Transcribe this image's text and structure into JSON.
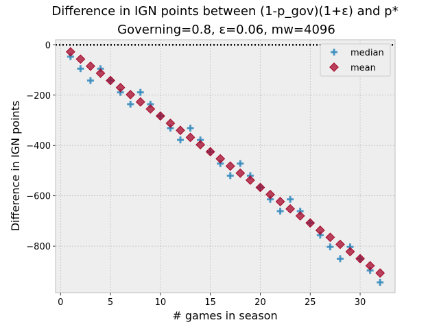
{
  "chart_data": {
    "type": "scatter",
    "title_line1": "Difference in IGN points between (1-p_gov)(1+ε) and p*",
    "title_line2": "Governing=0.8, ε=0.06, mw=4096",
    "xlabel": "# games in season",
    "ylabel": "Difference in IGN points",
    "xlim": [
      -0.5,
      33.5
    ],
    "ylim": [
      -985,
      20
    ],
    "xticks": [
      0,
      5,
      10,
      15,
      20,
      25,
      30
    ],
    "yticks": [
      0,
      -200,
      -400,
      -600,
      -800
    ],
    "grid": true,
    "legend_position": "top-right",
    "reference_line": {
      "y": 0,
      "style": "dotted"
    },
    "series": [
      {
        "name": "median",
        "marker": "plus",
        "color": "#348ABD",
        "x": [
          1,
          2,
          3,
          4,
          5,
          6,
          7,
          8,
          9,
          10,
          11,
          12,
          13,
          14,
          15,
          16,
          17,
          18,
          19,
          20,
          21,
          22,
          23,
          24,
          25,
          26,
          27,
          28,
          29,
          30,
          31,
          32
        ],
        "y": [
          -47,
          -95,
          -142,
          -95,
          -142,
          -189,
          -236,
          -189,
          -236,
          -283,
          -331,
          -378,
          -331,
          -378,
          -425,
          -472,
          -520,
          -472,
          -520,
          -567,
          -614,
          -661,
          -614,
          -661,
          -708,
          -756,
          -803,
          -850,
          -803,
          -850,
          -897,
          -944
        ]
      },
      {
        "name": "mean",
        "marker": "diamond",
        "color": "#A60628",
        "x": [
          1,
          2,
          3,
          4,
          5,
          6,
          7,
          8,
          9,
          10,
          11,
          12,
          13,
          14,
          15,
          16,
          17,
          18,
          19,
          20,
          21,
          22,
          23,
          24,
          25,
          26,
          27,
          28,
          29,
          30,
          31,
          32
        ],
        "y": [
          -28,
          -57,
          -85,
          -113,
          -142,
          -170,
          -198,
          -227,
          -255,
          -283,
          -312,
          -340,
          -368,
          -397,
          -425,
          -453,
          -482,
          -510,
          -538,
          -567,
          -595,
          -623,
          -652,
          -680,
          -708,
          -737,
          -765,
          -793,
          -822,
          -850,
          -878,
          -907
        ]
      }
    ]
  }
}
